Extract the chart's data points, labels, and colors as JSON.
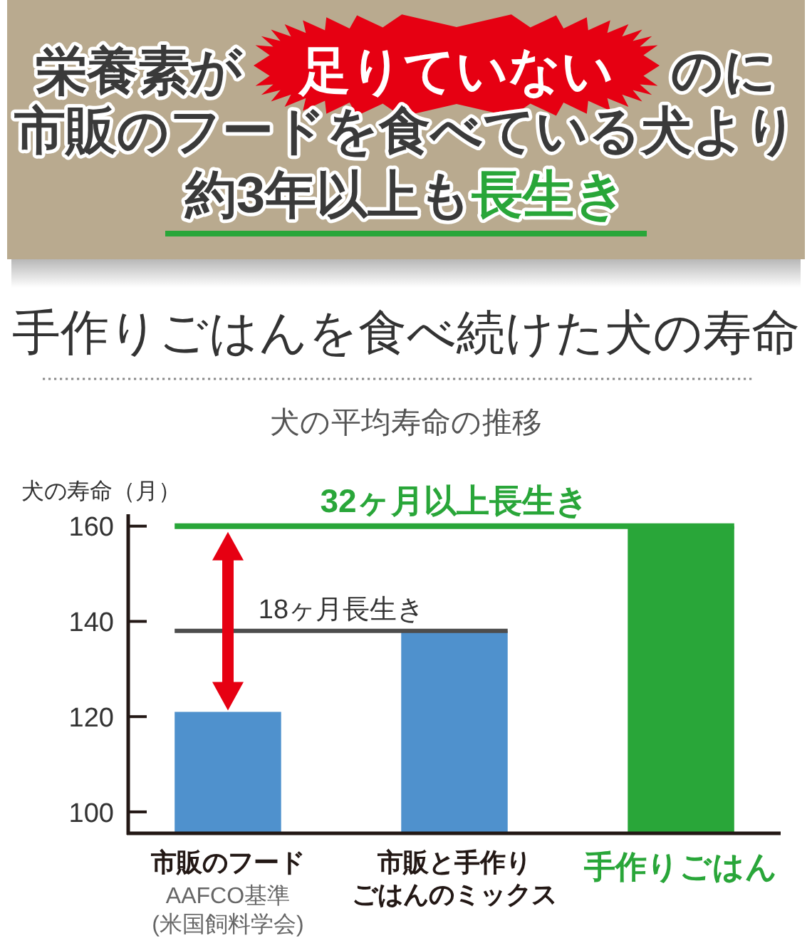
{
  "chart_data": {
    "type": "bar",
    "title": "手作りごはんを食べ続けた犬の寿命",
    "subtitle": "犬の平均寿命の推移",
    "ylabel": "犬の寿命（月）",
    "categories": [
      "市販のフード",
      "市販と手作りごはんのミックス",
      "手作りごはん"
    ],
    "values": [
      121,
      138,
      160
    ],
    "colors": [
      "#4f91cd",
      "#4f91cd",
      "#29a639"
    ],
    "ylim": [
      95.5,
      162.5
    ],
    "yticks": [
      100,
      120,
      140,
      160
    ],
    "ref_lines": [
      {
        "axis": "y",
        "value": 160,
        "label": "32ヶ月以上長生き",
        "color": "#29a639"
      },
      {
        "axis": "y",
        "value": 138,
        "label": "18ヶ月長生き",
        "color": "#4d4d4d"
      }
    ],
    "annotations": [
      "栄養素が",
      "足りていない",
      "のに",
      "市販のフードを食べている犬より",
      "約3年以上も",
      "長生き",
      "AAFCO基準\n(米国飼料学会)"
    ]
  }
}
